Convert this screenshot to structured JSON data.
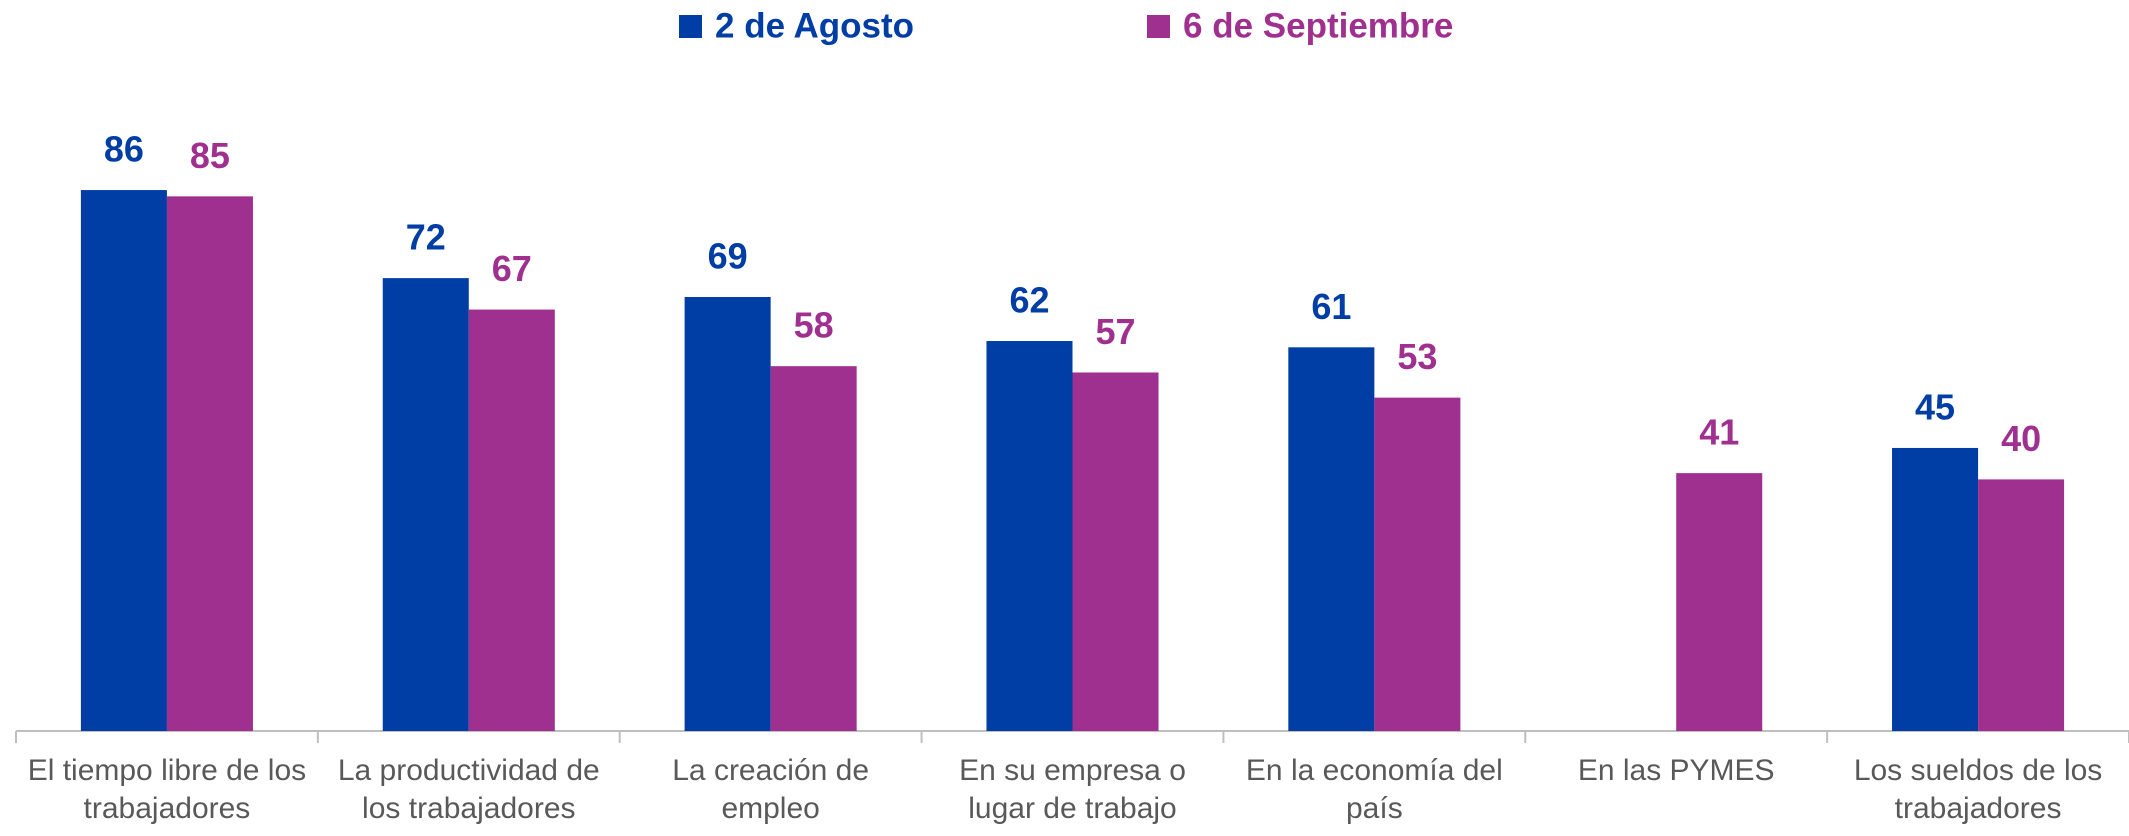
{
  "chart_data": {
    "type": "bar",
    "categories": [
      "El tiempo libre de los trabajadores",
      "La productividad de los trabajadores",
      "La creación de empleo",
      "En su empresa o lugar de trabajo",
      "En la economía del país",
      "En las PYMES",
      "Los sueldos de los trabajadores"
    ],
    "series": [
      {
        "name": "2 de Agosto",
        "color": "#003da5",
        "values": [
          86,
          72,
          69,
          62,
          61,
          null,
          45
        ]
      },
      {
        "name": "6 de Septiembre",
        "color": "#a0308f",
        "values": [
          85,
          67,
          58,
          57,
          53,
          41,
          40
        ]
      }
    ],
    "ylim": [
      0,
      100
    ],
    "legend": "top"
  }
}
